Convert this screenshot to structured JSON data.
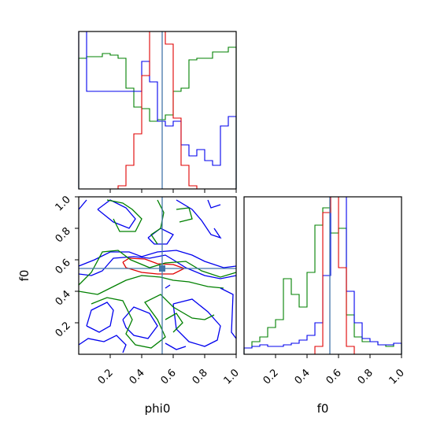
{
  "chart_data": {
    "type": "corner",
    "parameters": [
      "phi0",
      "f0"
    ],
    "xlabel": "phi0",
    "ylabel": "f0",
    "xlabel_f0": "f0",
    "ticks": [
      "0.2",
      "0.4",
      "0.6",
      "0.8",
      "1.0"
    ],
    "tick_values": [
      0.2,
      0.4,
      0.6,
      0.8,
      1.0
    ],
    "truth": {
      "phi0": 0.53,
      "f0": 0.545
    },
    "colors": {
      "red": "#e00000",
      "green": "#008000",
      "blue": "#0000ee",
      "truth": "#4477aa"
    },
    "hist_phi0": {
      "edges": [
        0.0,
        0.05,
        0.1,
        0.15,
        0.2,
        0.25,
        0.3,
        0.35,
        0.4,
        0.45,
        0.5,
        0.55,
        0.6,
        0.65,
        0.7,
        0.75,
        0.8,
        0.85,
        0.9,
        0.95,
        1.0
      ],
      "red": [
        0,
        0,
        0,
        0,
        0,
        0.02,
        0.15,
        0.35,
        0.72,
        1.0,
        1.0,
        0.92,
        0.45,
        0.15,
        0.02,
        0,
        0,
        0,
        0,
        0
      ],
      "green": [
        0.83,
        0.84,
        0.84,
        0.86,
        0.85,
        0.83,
        0.64,
        0.52,
        0.51,
        0.43,
        0.44,
        0.47,
        0.62,
        0.64,
        0.82,
        0.83,
        0.83,
        0.87,
        0.87,
        0.9
      ],
      "blue": [
        1.0,
        0.62,
        0.62,
        0.62,
        0.62,
        0.62,
        0.62,
        0.62,
        0.81,
        0.68,
        0.43,
        0.4,
        0.43,
        0.28,
        0.21,
        0.25,
        0.18,
        0.15,
        0.4,
        0.46
      ]
    },
    "hist_f0": {
      "edges": [
        0.0,
        0.05,
        0.1,
        0.15,
        0.2,
        0.25,
        0.3,
        0.35,
        0.4,
        0.45,
        0.5,
        0.55,
        0.6,
        0.65,
        0.7,
        0.75,
        0.8,
        0.85,
        0.9,
        0.95,
        1.0
      ],
      "red": [
        0,
        0,
        0,
        0,
        0,
        0,
        0,
        0,
        0,
        0.05,
        0.9,
        1.0,
        0.55,
        0.05,
        0,
        0,
        0,
        0,
        0,
        0
      ],
      "green": [
        0.04,
        0.08,
        0.11,
        0.17,
        0.22,
        0.48,
        0.38,
        0.3,
        0.52,
        0.82,
        0.93,
        0.77,
        0.8,
        0.25,
        0.11,
        0.08,
        0.08,
        0.06,
        0.05,
        0.07
      ],
      "blue": [
        0.04,
        0.05,
        0.06,
        0.05,
        0.05,
        0.06,
        0.07,
        0.09,
        0.12,
        0.2,
        0.5,
        1.0,
        1.0,
        0.4,
        0.2,
        0.1,
        0.08,
        0.06,
        0.06,
        0.07
      ]
    },
    "contours": [
      {
        "color": "red",
        "points": [
          [
            0.28,
            0.585
          ],
          [
            0.32,
            0.61
          ],
          [
            0.42,
            0.605
          ],
          [
            0.5,
            0.575
          ],
          [
            0.6,
            0.57
          ],
          [
            0.67,
            0.545
          ],
          [
            0.6,
            0.51
          ],
          [
            0.5,
            0.51
          ],
          [
            0.4,
            0.52
          ],
          [
            0.3,
            0.55
          ],
          [
            0.28,
            0.585
          ]
        ]
      },
      {
        "color": "blue",
        "points": [
          [
            0.0,
            0.51
          ],
          [
            0.08,
            0.5
          ],
          [
            0.15,
            0.53
          ],
          [
            0.22,
            0.61
          ],
          [
            0.35,
            0.62
          ],
          [
            0.45,
            0.61
          ],
          [
            0.55,
            0.63
          ],
          [
            0.6,
            0.6
          ],
          [
            0.68,
            0.55
          ],
          [
            0.8,
            0.5
          ],
          [
            0.9,
            0.48
          ],
          [
            1.0,
            0.5
          ]
        ]
      },
      {
        "color": "blue",
        "points": [
          [
            0.0,
            0.56
          ],
          [
            0.1,
            0.6
          ],
          [
            0.2,
            0.65
          ],
          [
            0.32,
            0.65
          ],
          [
            0.4,
            0.62
          ],
          [
            0.5,
            0.65
          ],
          [
            0.62,
            0.66
          ],
          [
            0.72,
            0.63
          ],
          [
            0.8,
            0.59
          ],
          [
            0.92,
            0.55
          ],
          [
            1.0,
            0.56
          ]
        ]
      },
      {
        "color": "green",
        "points": [
          [
            0.0,
            0.44
          ],
          [
            0.08,
            0.52
          ],
          [
            0.15,
            0.65
          ],
          [
            0.25,
            0.66
          ],
          [
            0.33,
            0.6
          ],
          [
            0.45,
            0.55
          ],
          [
            0.55,
            0.58
          ],
          [
            0.68,
            0.59
          ],
          [
            0.78,
            0.53
          ],
          [
            0.9,
            0.49
          ],
          [
            1.0,
            0.52
          ]
        ]
      },
      {
        "color": "green",
        "points": [
          [
            0.0,
            0.4
          ],
          [
            0.12,
            0.38
          ],
          [
            0.22,
            0.43
          ],
          [
            0.3,
            0.47
          ],
          [
            0.4,
            0.5
          ],
          [
            0.52,
            0.49
          ],
          [
            0.6,
            0.47
          ],
          [
            0.7,
            0.46
          ],
          [
            0.82,
            0.43
          ],
          [
            0.92,
            0.42
          ]
        ]
      },
      {
        "color": "blue",
        "points": [
          [
            0.05,
            0.18
          ],
          [
            0.08,
            0.28
          ],
          [
            0.18,
            0.33
          ],
          [
            0.22,
            0.28
          ],
          [
            0.2,
            0.18
          ],
          [
            0.13,
            0.14
          ],
          [
            0.05,
            0.18
          ]
        ]
      },
      {
        "color": "blue",
        "points": [
          [
            0.0,
            0.06
          ],
          [
            0.06,
            0.1
          ],
          [
            0.16,
            0.08
          ],
          [
            0.24,
            0.12
          ],
          [
            0.3,
            0.06
          ],
          [
            0.28,
            0.01
          ]
        ]
      },
      {
        "color": "blue",
        "points": [
          [
            0.28,
            0.22
          ],
          [
            0.35,
            0.3
          ],
          [
            0.45,
            0.26
          ],
          [
            0.5,
            0.18
          ],
          [
            0.44,
            0.1
          ],
          [
            0.35,
            0.12
          ],
          [
            0.3,
            0.17
          ],
          [
            0.28,
            0.22
          ]
        ]
      },
      {
        "color": "blue",
        "points": [
          [
            0.6,
            0.32
          ],
          [
            0.72,
            0.35
          ],
          [
            0.82,
            0.27
          ],
          [
            0.9,
            0.18
          ],
          [
            0.88,
            0.09
          ],
          [
            0.8,
            0.05
          ],
          [
            0.7,
            0.08
          ],
          [
            0.62,
            0.16
          ],
          [
            0.6,
            0.32
          ]
        ]
      },
      {
        "color": "blue",
        "points": [
          [
            0.9,
            0.42
          ],
          [
            0.98,
            0.38
          ],
          [
            0.97,
            0.14
          ],
          [
            1.0,
            0.1
          ]
        ]
      },
      {
        "color": "blue",
        "points": [
          [
            0.55,
            0.07
          ],
          [
            0.62,
            0.03
          ],
          [
            0.68,
            0.05
          ]
        ]
      },
      {
        "color": "green",
        "points": [
          [
            0.08,
            0.32
          ],
          [
            0.18,
            0.36
          ],
          [
            0.28,
            0.34
          ],
          [
            0.34,
            0.22
          ],
          [
            0.3,
            0.13
          ],
          [
            0.36,
            0.06
          ],
          [
            0.46,
            0.04
          ],
          [
            0.55,
            0.11
          ],
          [
            0.5,
            0.22
          ],
          [
            0.42,
            0.33
          ],
          [
            0.52,
            0.38
          ],
          [
            0.6,
            0.3
          ],
          [
            0.72,
            0.23
          ],
          [
            0.8,
            0.22
          ],
          [
            0.86,
            0.25
          ]
        ]
      },
      {
        "color": "green",
        "points": [
          [
            0.55,
            0.22
          ],
          [
            0.62,
            0.26
          ],
          [
            0.66,
            0.2
          ],
          [
            0.6,
            0.14
          ]
        ]
      },
      {
        "color": "blue",
        "points": [
          [
            0.12,
            0.92
          ],
          [
            0.2,
            0.98
          ],
          [
            0.3,
            0.93
          ],
          [
            0.36,
            0.86
          ],
          [
            0.32,
            0.8
          ],
          [
            0.22,
            0.84
          ],
          [
            0.12,
            0.92
          ]
        ]
      },
      {
        "color": "blue",
        "points": [
          [
            0.62,
            0.98
          ],
          [
            0.72,
            0.92
          ],
          [
            0.78,
            0.85
          ],
          [
            0.84,
            0.76
          ],
          [
            0.9,
            0.74
          ],
          [
            0.86,
            0.8
          ]
        ]
      },
      {
        "color": "blue",
        "points": [
          [
            0.44,
            0.74
          ],
          [
            0.52,
            0.8
          ],
          [
            0.6,
            0.76
          ],
          [
            0.56,
            0.7
          ],
          [
            0.48,
            0.7
          ],
          [
            0.44,
            0.74
          ]
        ]
      },
      {
        "color": "blue",
        "points": [
          [
            0.0,
            0.92
          ],
          [
            0.05,
            0.98
          ]
        ]
      },
      {
        "color": "blue",
        "points": [
          [
            0.82,
            0.98
          ],
          [
            0.84,
            0.93
          ],
          [
            0.9,
            0.95
          ]
        ]
      },
      {
        "color": "green",
        "points": [
          [
            0.18,
            0.98
          ],
          [
            0.28,
            0.96
          ],
          [
            0.34,
            0.92
          ],
          [
            0.4,
            0.86
          ],
          [
            0.36,
            0.78
          ],
          [
            0.26,
            0.78
          ],
          [
            0.22,
            0.86
          ]
        ]
      },
      {
        "color": "green",
        "points": [
          [
            0.5,
            0.98
          ],
          [
            0.54,
            0.9
          ],
          [
            0.52,
            0.8
          ],
          [
            0.46,
            0.76
          ],
          [
            0.5,
            0.7
          ]
        ]
      },
      {
        "color": "green",
        "points": [
          [
            0.62,
            0.92
          ],
          [
            0.7,
            0.93
          ],
          [
            0.72,
            0.86
          ],
          [
            0.64,
            0.84
          ]
        ]
      },
      {
        "color": "blue",
        "points": [
          [
            0.55,
            0.42
          ],
          [
            0.58,
            0.44
          ]
        ]
      }
    ]
  }
}
